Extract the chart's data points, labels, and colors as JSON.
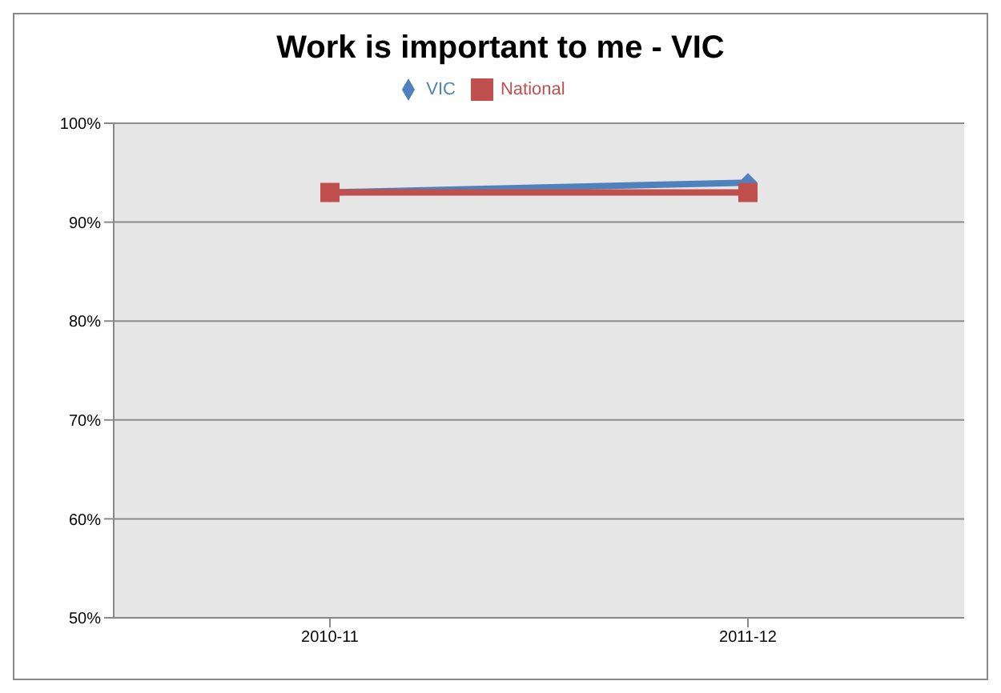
{
  "chart_data": {
    "type": "line",
    "title": "Work is important to me - VIC",
    "categories": [
      "2010-11",
      "2011-12"
    ],
    "series": [
      {
        "name": "VIC",
        "color": "#4f81bd",
        "values": [
          93,
          94
        ],
        "marker": "diamond"
      },
      {
        "name": "National",
        "color": "#c0504d",
        "values": [
          93,
          93
        ],
        "marker": "square"
      }
    ],
    "ylim": [
      50,
      100
    ],
    "yticks": [
      {
        "value": 50,
        "label": "50%"
      },
      {
        "value": 60,
        "label": "60%"
      },
      {
        "value": 70,
        "label": "70%"
      },
      {
        "value": 80,
        "label": "80%"
      },
      {
        "value": 90,
        "label": "90%"
      },
      {
        "value": 100,
        "label": "100%"
      }
    ],
    "grid": "y",
    "legend": "top",
    "line_style": "solid"
  }
}
